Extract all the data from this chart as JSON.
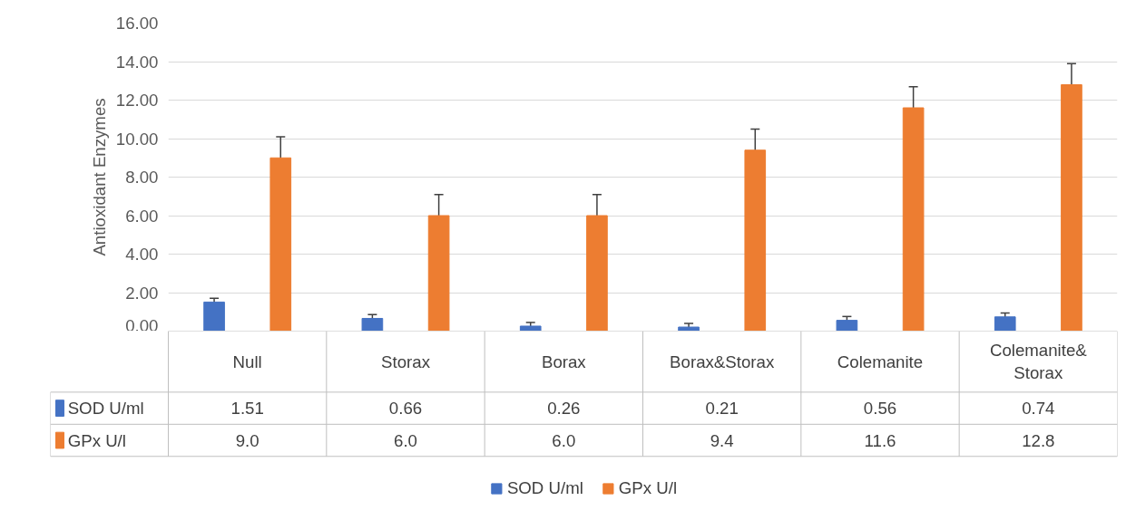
{
  "chart_data": {
    "type": "bar",
    "ylabel": "Antioxidant Enzymes",
    "categories": [
      "Null",
      "Storax",
      "Borax",
      "Borax&Storax",
      "Colemanite",
      "Colemanite&Storax"
    ],
    "series": [
      {
        "name": "SOD U/ml",
        "color": "#4472c4",
        "values": [
          1.51,
          0.66,
          0.26,
          0.21,
          0.56,
          0.74
        ],
        "errors": [
          0.2,
          0.2,
          [
            0.1,
            0.45
          ],
          [
            0.1,
            0.4
          ],
          0.2,
          0.2
        ],
        "value_labels": [
          "1.51",
          "0.66",
          "0.26",
          "0.21",
          "0.56",
          "0.74"
        ]
      },
      {
        "name": "GPx U/l",
        "color": "#ed7d31",
        "values": [
          9.0,
          6.0,
          6.0,
          9.4,
          11.6,
          12.8
        ],
        "errors": [
          1.1,
          1.1,
          1.1,
          1.1,
          1.1,
          1.1
        ],
        "value_labels": [
          "9.0",
          "6.0",
          "6.0",
          "9.4",
          "11.6",
          "12.8"
        ]
      }
    ],
    "ylim": [
      0,
      16
    ],
    "yticks": [
      {
        "value": 0,
        "label": "0.00"
      },
      {
        "value": 2,
        "label": "2.00"
      },
      {
        "value": 4,
        "label": "4.00"
      },
      {
        "value": 6,
        "label": "6.00"
      },
      {
        "value": 8,
        "label": "8.00"
      },
      {
        "value": 10,
        "label": "10.00"
      },
      {
        "value": 12,
        "label": "12.00"
      },
      {
        "value": 14,
        "label": "14.00"
      },
      {
        "value": 16,
        "label": "16.00"
      }
    ],
    "grid": "y",
    "legend": "bottom"
  }
}
